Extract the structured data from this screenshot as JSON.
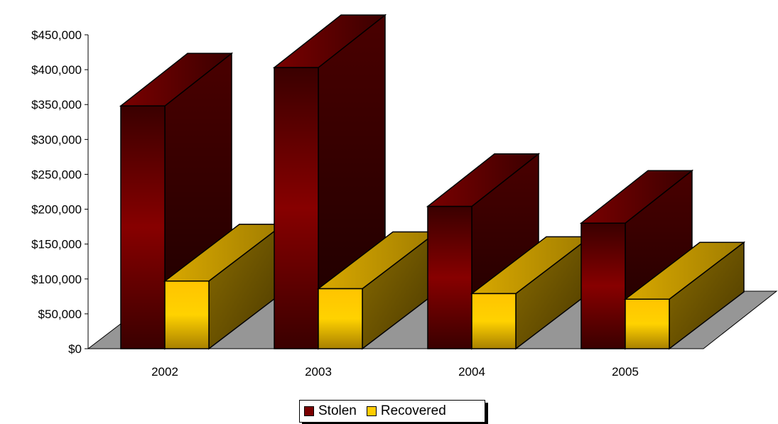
{
  "chart_data": {
    "type": "bar",
    "subtype": "3d-clustered",
    "categories": [
      "2002",
      "2003",
      "2004",
      "2005"
    ],
    "series": [
      {
        "name": "Stolen",
        "values": [
          348000,
          403000,
          204000,
          180000
        ],
        "color": "#7a0000"
      },
      {
        "name": "Recovered",
        "values": [
          97000,
          86000,
          79000,
          71000
        ],
        "color": "#ffcc00"
      }
    ],
    "y_tick_labels": [
      "$0",
      "$50,000",
      "$100,000",
      "$150,000",
      "$200,000",
      "$250,000",
      "$300,000",
      "$350,000",
      "$400,000",
      "$450,000"
    ],
    "ylim": [
      0,
      450000
    ],
    "legend_position": "bottom",
    "floor_color": "#969696"
  }
}
